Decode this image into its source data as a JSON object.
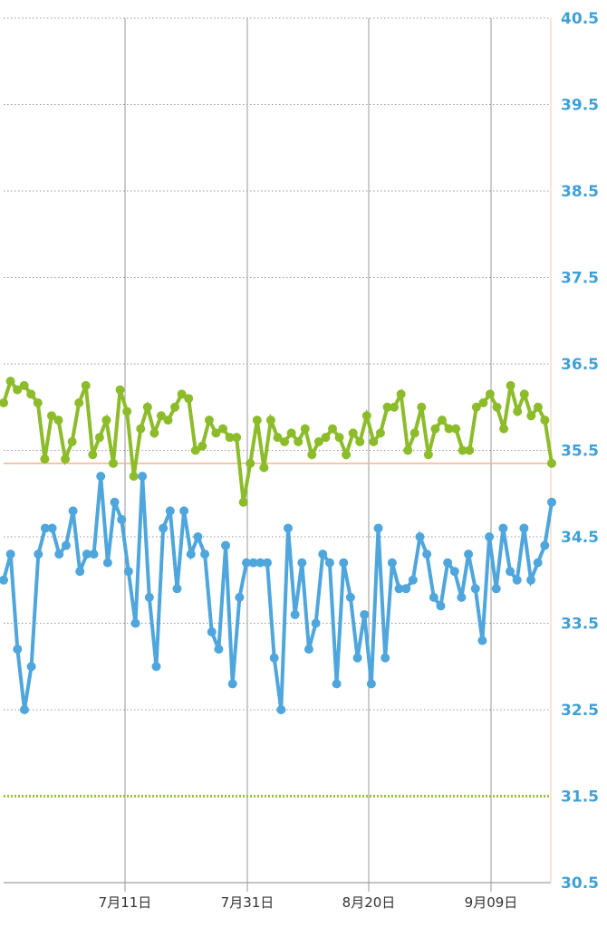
{
  "chart_data": {
    "type": "line",
    "title": "",
    "xlabel": "",
    "ylabel": "",
    "ylim": [
      30.5,
      40.5
    ],
    "y_ticks": [
      "40.5",
      "39.5",
      "38.5",
      "37.5",
      "36.5",
      "35.5",
      "34.5",
      "33.5",
      "32.5",
      "31.5",
      "30.5"
    ],
    "x_tick_labels": [
      "7月11日",
      "7月31日",
      "8月20日",
      "9月09日"
    ],
    "grid": true,
    "colors": {
      "upper_series": "#8dbc2b",
      "lower_series": "#4ea6dc",
      "axis_label": "#3fa0d8",
      "reference_line": "#f2b48a",
      "baseline_line": "#9ac33c"
    },
    "reference_lines": [
      {
        "value": 35.35
      },
      {
        "value": 31.5,
        "style": "dotted"
      }
    ],
    "series": [
      {
        "values": [
          36.05,
          36.3,
          36.2,
          36.25,
          36.15,
          36.05,
          35.4,
          35.9,
          35.85,
          35.4,
          35.6,
          36.05,
          36.25,
          35.45,
          35.65,
          35.85,
          35.35,
          36.2,
          35.95,
          35.2,
          35.75,
          36.0,
          35.7,
          35.9,
          35.85,
          36.0,
          36.15,
          36.1,
          35.5,
          35.55,
          35.85,
          35.7,
          35.75,
          35.65,
          35.65,
          34.9,
          35.35,
          35.85,
          35.3,
          35.85,
          35.65,
          35.6,
          35.7,
          35.6,
          35.75,
          35.45,
          35.6,
          35.65,
          35.75,
          35.65,
          35.45,
          35.7,
          35.6,
          35.9,
          35.6,
          35.7,
          36.0,
          36.0,
          36.15,
          35.5,
          35.7,
          36.0,
          35.45,
          35.75,
          35.85,
          35.75,
          35.75,
          35.5,
          35.5,
          36.0,
          36.05,
          36.15,
          36.0,
          35.75,
          36.25,
          35.95,
          36.15,
          35.9,
          36.0,
          35.85,
          35.35
        ]
      },
      {
        "values": [
          34.0,
          34.3,
          33.2,
          32.5,
          33.0,
          34.3,
          34.6,
          34.6,
          34.3,
          34.4,
          34.8,
          34.1,
          34.3,
          34.3,
          35.2,
          34.2,
          34.9,
          34.7,
          34.1,
          33.5,
          35.2,
          33.8,
          33.0,
          34.6,
          34.8,
          33.9,
          34.8,
          34.3,
          34.5,
          34.3,
          33.4,
          33.2,
          34.4,
          32.8,
          33.8,
          34.2,
          34.2,
          34.2,
          34.2,
          33.1,
          32.5,
          34.6,
          33.6,
          34.2,
          33.2,
          33.5,
          34.3,
          34.2,
          32.8,
          34.2,
          33.8,
          33.1,
          33.6,
          32.8,
          34.6,
          33.1,
          34.2,
          33.9,
          33.9,
          34.0,
          34.5,
          34.3,
          33.8,
          33.7,
          34.2,
          34.1,
          33.8,
          34.3,
          33.9,
          33.3,
          34.5,
          33.9,
          34.6,
          34.1,
          34.0,
          34.6,
          34.0,
          34.2,
          34.4,
          34.9
        ]
      }
    ]
  }
}
